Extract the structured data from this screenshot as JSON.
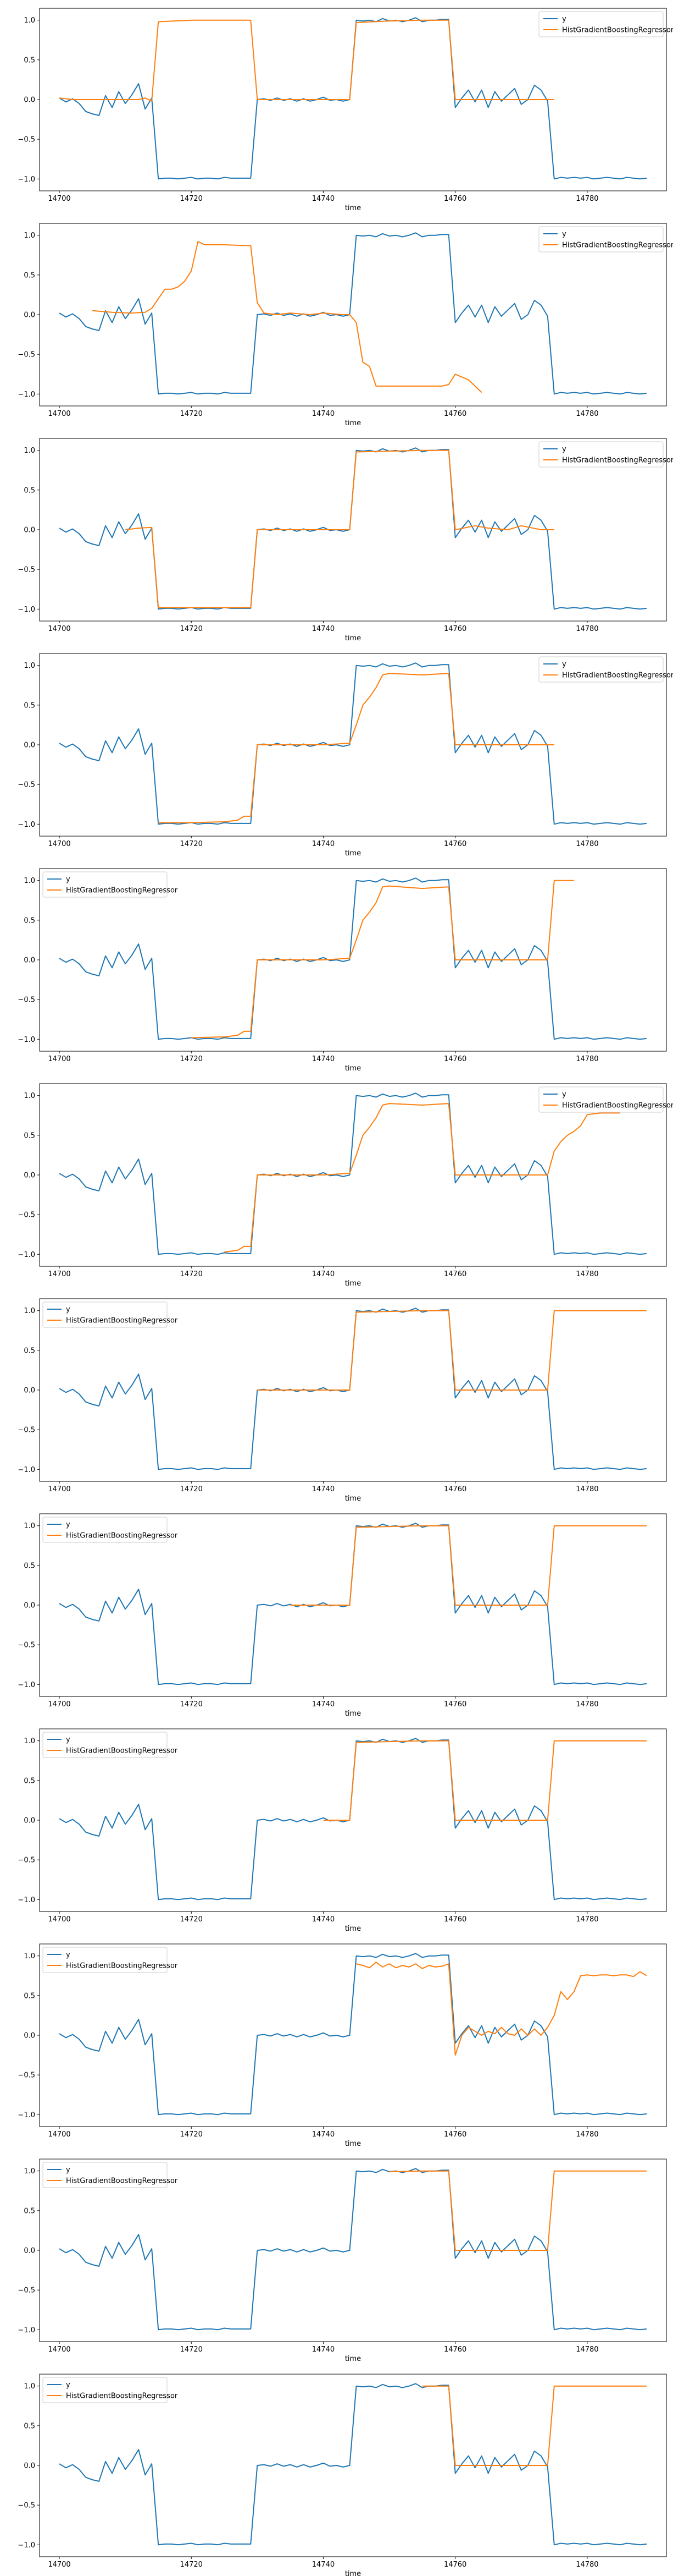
{
  "colors": {
    "y": "#1f77b4",
    "pred": "#ff7f0e",
    "axes": "#000000",
    "legend_edge": "#cccccc"
  },
  "chart_data": [
    {
      "type": "line",
      "xlabel": "time",
      "legend_loc": "upper right",
      "xlim": [
        14697,
        14792
      ],
      "ylim": [
        -1.15,
        1.15
      ],
      "xticks": [
        14700,
        14720,
        14740,
        14760,
        14780
      ],
      "yticks": [
        -1.0,
        -0.5,
        0.0,
        0.5,
        1.0
      ],
      "series": [
        {
          "name": "y",
          "x": [],
          "y": []
        },
        {
          "name": "HistGradientBoostingRegressor",
          "x": [
            14700,
            14702,
            14704,
            14706,
            14708,
            14710,
            14712,
            14713,
            14714,
            14715,
            14720,
            14725,
            14729,
            14730,
            14735,
            14740,
            14744,
            14745,
            14750,
            14755,
            14759,
            14760,
            14765,
            14770,
            14774,
            14775
          ],
          "y": [
            0.02,
            0.0,
            0.0,
            0.0,
            0.0,
            0.0,
            0.0,
            0.02,
            -0.02,
            0.98,
            1.0,
            1.0,
            1.0,
            0.0,
            0.0,
            0.0,
            0.0,
            0.97,
            0.99,
            1.0,
            1.0,
            0.0,
            0.0,
            0.0,
            0.0,
            0.0
          ]
        }
      ]
    },
    {
      "type": "line",
      "xlabel": "time",
      "legend_loc": "upper right",
      "xlim": [
        14697,
        14792
      ],
      "ylim": [
        -1.15,
        1.15
      ],
      "xticks": [
        14700,
        14720,
        14740,
        14760,
        14780
      ],
      "yticks": [
        -1.0,
        -0.5,
        0.0,
        0.5,
        1.0
      ],
      "series": [
        {
          "name": "y",
          "x": [],
          "y": []
        },
        {
          "name": "HistGradientBoostingRegressor",
          "x": [
            14705,
            14708,
            14711,
            14713,
            14714,
            14715,
            14716,
            14717,
            14718,
            14719,
            14720,
            14721,
            14722,
            14725,
            14728,
            14729,
            14730,
            14731,
            14733,
            14735,
            14738,
            14740,
            14743,
            14744,
            14745,
            14746,
            14747,
            14748,
            14750,
            14753,
            14755,
            14758,
            14759,
            14760,
            14762,
            14764
          ],
          "y": [
            0.05,
            0.03,
            0.02,
            0.03,
            0.08,
            0.2,
            0.32,
            0.32,
            0.35,
            0.42,
            0.55,
            0.92,
            0.88,
            0.88,
            0.87,
            0.87,
            0.15,
            0.02,
            0.0,
            0.02,
            0.0,
            0.02,
            0.0,
            0.0,
            -0.1,
            -0.6,
            -0.65,
            -0.9,
            -0.9,
            -0.9,
            -0.9,
            -0.9,
            -0.88,
            -0.75,
            -0.82,
            -0.98
          ]
        }
      ]
    },
    {
      "type": "line",
      "xlabel": "time",
      "legend_loc": "upper right",
      "xlim": [
        14697,
        14792
      ],
      "ylim": [
        -1.15,
        1.15
      ],
      "xticks": [
        14700,
        14720,
        14740,
        14760,
        14780
      ],
      "yticks": [
        -1.0,
        -0.5,
        0.0,
        0.5,
        1.0
      ],
      "series": [
        {
          "name": "y",
          "x": [],
          "y": []
        },
        {
          "name": "HistGradientBoostingRegressor",
          "x": [
            14710,
            14712,
            14714,
            14715,
            14720,
            14725,
            14729,
            14730,
            14735,
            14740,
            14744,
            14745,
            14750,
            14755,
            14759,
            14760,
            14763,
            14765,
            14768,
            14770,
            14773,
            14775
          ],
          "y": [
            0.0,
            0.02,
            0.03,
            -0.98,
            -0.98,
            -0.98,
            -0.98,
            0.0,
            0.0,
            0.0,
            0.0,
            0.98,
            0.99,
            1.0,
            1.0,
            0.0,
            0.05,
            0.02,
            0.0,
            0.05,
            0.0,
            0.0
          ]
        }
      ]
    },
    {
      "type": "line",
      "xlabel": "time",
      "legend_loc": "upper right",
      "xlim": [
        14697,
        14792
      ],
      "ylim": [
        -1.15,
        1.15
      ],
      "xticks": [
        14700,
        14720,
        14740,
        14760,
        14780
      ],
      "yticks": [
        -1.0,
        -0.5,
        0.0,
        0.5,
        1.0
      ],
      "series": [
        {
          "name": "y",
          "x": [],
          "y": []
        },
        {
          "name": "HistGradientBoostingRegressor",
          "x": [
            14715,
            14720,
            14725,
            14727,
            14728,
            14729,
            14730,
            14735,
            14740,
            14744,
            14745,
            14746,
            14747,
            14748,
            14749,
            14750,
            14755,
            14759,
            14760,
            14765,
            14770,
            14775
          ],
          "y": [
            -0.98,
            -0.98,
            -0.97,
            -0.95,
            -0.9,
            -0.9,
            0.0,
            0.0,
            0.0,
            0.02,
            0.25,
            0.5,
            0.6,
            0.72,
            0.88,
            0.9,
            0.88,
            0.9,
            0.0,
            0.0,
            0.0,
            0.0
          ]
        }
      ]
    },
    {
      "type": "line",
      "xlabel": "time",
      "legend_loc": "upper left",
      "xlim": [
        14697,
        14792
      ],
      "ylim": [
        -1.15,
        1.15
      ],
      "xticks": [
        14700,
        14720,
        14740,
        14760,
        14780
      ],
      "yticks": [
        -1.0,
        -0.5,
        0.0,
        0.5,
        1.0
      ],
      "series": [
        {
          "name": "y",
          "x": [],
          "y": []
        },
        {
          "name": "HistGradientBoostingRegressor",
          "x": [
            14720,
            14725,
            14727,
            14728,
            14729,
            14730,
            14735,
            14740,
            14744,
            14745,
            14746,
            14747,
            14748,
            14749,
            14750,
            14755,
            14759,
            14760,
            14765,
            14770,
            14774,
            14775,
            14778
          ],
          "y": [
            -0.98,
            -0.97,
            -0.95,
            -0.9,
            -0.9,
            0.0,
            0.0,
            0.0,
            0.02,
            0.25,
            0.5,
            0.6,
            0.72,
            0.92,
            0.93,
            0.9,
            0.92,
            0.0,
            0.0,
            0.0,
            0.0,
            1.0,
            1.0
          ]
        }
      ]
    },
    {
      "type": "line",
      "xlabel": "time",
      "legend_loc": "upper right",
      "xlim": [
        14697,
        14792
      ],
      "ylim": [
        -1.15,
        1.15
      ],
      "xticks": [
        14700,
        14720,
        14740,
        14760,
        14780
      ],
      "yticks": [
        -1.0,
        -0.5,
        0.0,
        0.5,
        1.0
      ],
      "series": [
        {
          "name": "y",
          "x": [],
          "y": []
        },
        {
          "name": "HistGradientBoostingRegressor",
          "x": [
            14725,
            14727,
            14728,
            14729,
            14730,
            14735,
            14740,
            14744,
            14745,
            14746,
            14747,
            14748,
            14749,
            14750,
            14755,
            14759,
            14760,
            14765,
            14770,
            14774,
            14775,
            14776,
            14777,
            14778,
            14779,
            14780,
            14782,
            14785
          ],
          "y": [
            -0.97,
            -0.95,
            -0.9,
            -0.9,
            0.0,
            0.0,
            0.0,
            0.02,
            0.25,
            0.5,
            0.6,
            0.72,
            0.88,
            0.9,
            0.88,
            0.9,
            0.0,
            0.0,
            0.0,
            0.0,
            0.3,
            0.42,
            0.5,
            0.55,
            0.62,
            0.76,
            0.78,
            0.78
          ]
        }
      ]
    },
    {
      "type": "line",
      "xlabel": "time",
      "legend_loc": "upper left",
      "xlim": [
        14697,
        14792
      ],
      "ylim": [
        -1.15,
        1.15
      ],
      "xticks": [
        14700,
        14720,
        14740,
        14760,
        14780
      ],
      "yticks": [
        -1.0,
        -0.5,
        0.0,
        0.5,
        1.0
      ],
      "series": [
        {
          "name": "y",
          "x": [],
          "y": []
        },
        {
          "name": "HistGradientBoostingRegressor",
          "x": [
            14730,
            14735,
            14740,
            14744,
            14745,
            14750,
            14755,
            14759,
            14760,
            14765,
            14770,
            14774,
            14775,
            14780,
            14785,
            14789
          ],
          "y": [
            0.0,
            0.0,
            0.0,
            0.0,
            0.98,
            0.99,
            1.0,
            1.0,
            0.0,
            0.0,
            0.0,
            0.0,
            1.0,
            1.0,
            1.0,
            1.0
          ]
        }
      ]
    },
    {
      "type": "line",
      "xlabel": "time",
      "legend_loc": "upper left",
      "xlim": [
        14697,
        14792
      ],
      "ylim": [
        -1.15,
        1.15
      ],
      "xticks": [
        14700,
        14720,
        14740,
        14760,
        14780
      ],
      "yticks": [
        -1.0,
        -0.5,
        0.0,
        0.5,
        1.0
      ],
      "series": [
        {
          "name": "y",
          "x": [],
          "y": []
        },
        {
          "name": "HistGradientBoostingRegressor",
          "x": [
            14735,
            14740,
            14744,
            14745,
            14750,
            14755,
            14759,
            14760,
            14765,
            14770,
            14774,
            14775,
            14780,
            14785,
            14789
          ],
          "y": [
            0.0,
            0.0,
            0.0,
            0.98,
            0.99,
            1.0,
            1.0,
            0.0,
            0.0,
            0.0,
            0.0,
            1.0,
            1.0,
            1.0,
            1.0
          ]
        }
      ]
    },
    {
      "type": "line",
      "xlabel": "time",
      "legend_loc": "upper left",
      "xlim": [
        14697,
        14792
      ],
      "ylim": [
        -1.15,
        1.15
      ],
      "xticks": [
        14700,
        14720,
        14740,
        14760,
        14780
      ],
      "yticks": [
        -1.0,
        -0.5,
        0.0,
        0.5,
        1.0
      ],
      "series": [
        {
          "name": "y",
          "x": [],
          "y": []
        },
        {
          "name": "HistGradientBoostingRegressor",
          "x": [
            14740,
            14744,
            14745,
            14750,
            14755,
            14759,
            14760,
            14765,
            14770,
            14774,
            14775,
            14780,
            14785,
            14789
          ],
          "y": [
            0.0,
            0.0,
            0.98,
            0.99,
            1.0,
            1.0,
            0.0,
            0.0,
            0.0,
            0.0,
            1.0,
            1.0,
            1.0,
            1.0
          ]
        }
      ]
    },
    {
      "type": "line",
      "xlabel": "time",
      "legend_loc": "upper left",
      "xlim": [
        14697,
        14792
      ],
      "ylim": [
        -1.15,
        1.15
      ],
      "xticks": [
        14700,
        14720,
        14740,
        14760,
        14780
      ],
      "yticks": [
        -1.0,
        -0.5,
        0.0,
        0.5,
        1.0
      ],
      "series": [
        {
          "name": "y",
          "x": [],
          "y": []
        },
        {
          "name": "HistGradientBoostingRegressor",
          "x": [
            14745,
            14746,
            14747,
            14748,
            14749,
            14750,
            14751,
            14752,
            14753,
            14754,
            14755,
            14756,
            14757,
            14758,
            14759,
            14760,
            14761,
            14762,
            14763,
            14764,
            14765,
            14766,
            14767,
            14768,
            14769,
            14770,
            14771,
            14772,
            14773,
            14774,
            14775,
            14776,
            14777,
            14778,
            14779,
            14780,
            14781,
            14782,
            14783,
            14784,
            14785,
            14786,
            14787,
            14788,
            14789
          ],
          "y": [
            0.9,
            0.88,
            0.85,
            0.92,
            0.86,
            0.9,
            0.85,
            0.88,
            0.86,
            0.9,
            0.84,
            0.88,
            0.86,
            0.87,
            0.9,
            -0.25,
            0.0,
            0.1,
            0.05,
            0.0,
            0.05,
            0.02,
            0.1,
            0.02,
            0.0,
            0.08,
            0.0,
            0.08,
            0.0,
            0.1,
            0.25,
            0.55,
            0.45,
            0.55,
            0.75,
            0.76,
            0.75,
            0.76,
            0.76,
            0.75,
            0.76,
            0.76,
            0.74,
            0.8,
            0.75
          ]
        }
      ]
    },
    {
      "type": "line",
      "xlabel": "time",
      "legend_loc": "upper left",
      "xlim": [
        14697,
        14792
      ],
      "ylim": [
        -1.15,
        1.15
      ],
      "xticks": [
        14700,
        14720,
        14740,
        14760,
        14780
      ],
      "yticks": [
        -1.0,
        -0.5,
        0.0,
        0.5,
        1.0
      ],
      "series": [
        {
          "name": "y",
          "x": [],
          "y": []
        },
        {
          "name": "HistGradientBoostingRegressor",
          "x": [
            14750,
            14755,
            14759,
            14760,
            14765,
            14770,
            14774,
            14775,
            14780,
            14785,
            14789
          ],
          "y": [
            0.99,
            1.0,
            1.0,
            0.0,
            0.0,
            0.0,
            0.0,
            1.0,
            1.0,
            1.0,
            1.0
          ]
        }
      ]
    },
    {
      "type": "line",
      "xlabel": "time",
      "legend_loc": "upper left",
      "xlim": [
        14697,
        14792
      ],
      "ylim": [
        -1.15,
        1.15
      ],
      "xticks": [
        14700,
        14720,
        14740,
        14760,
        14780
      ],
      "yticks": [
        -1.0,
        -0.5,
        0.0,
        0.5,
        1.0
      ],
      "series": [
        {
          "name": "y",
          "x": [],
          "y": []
        },
        {
          "name": "HistGradientBoostingRegressor",
          "x": [
            14755,
            14759,
            14760,
            14765,
            14770,
            14774,
            14775,
            14780,
            14785,
            14789
          ],
          "y": [
            1.0,
            1.0,
            0.0,
            0.0,
            0.0,
            0.0,
            1.0,
            1.0,
            1.0,
            1.0
          ]
        }
      ]
    }
  ],
  "y_series": {
    "x": [
      14700,
      14701,
      14702,
      14703,
      14704,
      14705,
      14706,
      14707,
      14708,
      14709,
      14710,
      14711,
      14712,
      14713,
      14714,
      14715,
      14716,
      14717,
      14718,
      14719,
      14720,
      14721,
      14722,
      14723,
      14724,
      14725,
      14726,
      14727,
      14728,
      14729,
      14730,
      14731,
      14732,
      14733,
      14734,
      14735,
      14736,
      14737,
      14738,
      14739,
      14740,
      14741,
      14742,
      14743,
      14744,
      14745,
      14746,
      14747,
      14748,
      14749,
      14750,
      14751,
      14752,
      14753,
      14754,
      14755,
      14756,
      14757,
      14758,
      14759,
      14760,
      14761,
      14762,
      14763,
      14764,
      14765,
      14766,
      14767,
      14768,
      14769,
      14770,
      14771,
      14772,
      14773,
      14774,
      14775,
      14776,
      14777,
      14778,
      14779,
      14780,
      14781,
      14782,
      14783,
      14784,
      14785,
      14786,
      14787,
      14788,
      14789
    ],
    "y": [
      0.02,
      -0.03,
      0.01,
      -0.05,
      -0.15,
      -0.18,
      -0.2,
      0.05,
      -0.1,
      0.1,
      -0.05,
      0.06,
      0.2,
      -0.12,
      0.02,
      -1.0,
      -0.99,
      -0.99,
      -1.0,
      -0.99,
      -0.98,
      -1.0,
      -0.99,
      -0.99,
      -1.0,
      -0.98,
      -0.99,
      -0.99,
      -0.99,
      -0.99,
      0.0,
      0.01,
      -0.01,
      0.02,
      -0.01,
      0.01,
      -0.02,
      0.01,
      -0.02,
      0.0,
      0.03,
      -0.01,
      0.0,
      -0.02,
      0.0,
      1.0,
      0.99,
      1.0,
      0.98,
      1.02,
      0.99,
      1.0,
      0.98,
      1.0,
      1.03,
      0.98,
      1.0,
      1.0,
      1.01,
      1.01,
      -0.1,
      0.02,
      0.12,
      -0.03,
      0.12,
      -0.1,
      0.1,
      -0.02,
      0.06,
      0.14,
      -0.06,
      0.0,
      0.18,
      0.12,
      -0.02,
      -1.0,
      -0.98,
      -0.99,
      -0.98,
      -0.99,
      -0.98,
      -1.0,
      -0.99,
      -0.98,
      -0.99,
      -1.0,
      -0.98,
      -0.99,
      -1.0,
      -0.99
    ]
  }
}
